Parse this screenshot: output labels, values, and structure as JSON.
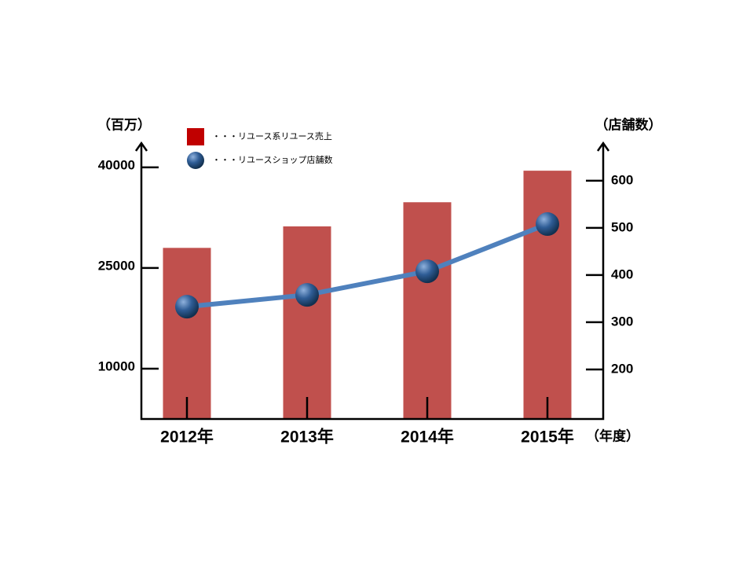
{
  "chart_data": {
    "type": "bar",
    "y_label": "（百万）",
    "y2_label": "（店舗数）",
    "x_label": "（年度）",
    "categories": [
      "2012年",
      "2013年",
      "2014年",
      "2015年"
    ],
    "series": [
      {
        "name": "・・・リユース系リユース売上",
        "color": "#c0504d",
        "type": "bar",
        "values": [
          28000,
          31200,
          34800,
          39500
        ]
      },
      {
        "name": "・・・リユースショップ店舗数",
        "color": "#4f81bd",
        "type": "line",
        "axis": "y2",
        "values": [
          333,
          358,
          408,
          508
        ]
      }
    ],
    "ylim": [
      2500,
      43500
    ],
    "yticks": [
      10000,
      25000,
      40000
    ],
    "y2lim": [
      95,
      678
    ],
    "y2ticks": [
      200,
      300,
      400,
      500,
      600
    ]
  }
}
